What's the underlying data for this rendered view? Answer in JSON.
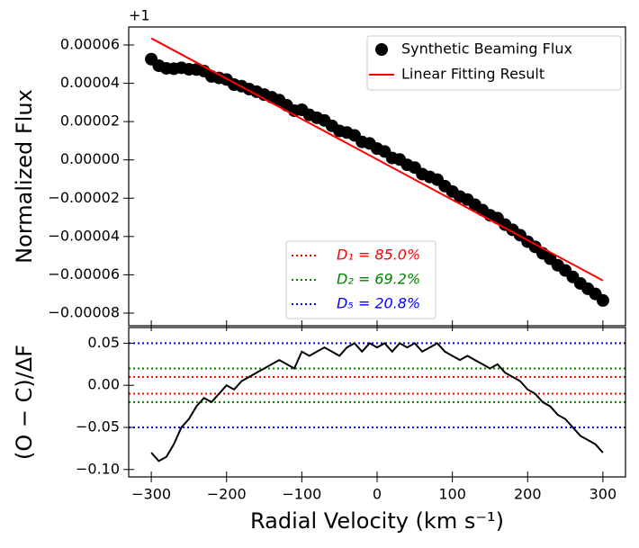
{
  "chart_data": [
    {
      "type": "scatter",
      "offset_text": "+1",
      "ylabel": "Normalized Flux",
      "xlim": [
        -330,
        330
      ],
      "xticks": [
        {
          "value": -300,
          "label": "−300"
        },
        {
          "value": -200,
          "label": "−200"
        },
        {
          "value": -100,
          "label": "−100"
        },
        0,
        100,
        200,
        300
      ],
      "ylim": [
        -8.66e-05,
        6.94e-05
      ],
      "yticks": [
        {
          "value": -8e-05,
          "label": "−0.00008"
        },
        {
          "value": -6e-05,
          "label": "−0.00006"
        },
        {
          "value": -4e-05,
          "label": "−0.00004"
        },
        {
          "value": -2e-05,
          "label": "−0.00002"
        },
        {
          "value": 0,
          "label": "0.00000"
        },
        2e-05,
        4e-05,
        6e-05
      ],
      "legend": "upper right",
      "series": [
        {
          "name": "Synthetic Beaming Flux",
          "kind": "scatter",
          "color": "#000000",
          "x": [
            -300,
            -290,
            -280,
            -270,
            -260,
            -250,
            -240,
            -230,
            -220,
            -210,
            -200,
            -190,
            -180,
            -170,
            -160,
            -150,
            -140,
            -130,
            -120,
            -110,
            -100,
            -90,
            -80,
            -70,
            -60,
            -50,
            -40,
            -30,
            -20,
            -10,
            0,
            10,
            20,
            30,
            40,
            50,
            60,
            70,
            80,
            90,
            100,
            110,
            120,
            130,
            140,
            150,
            160,
            170,
            180,
            190,
            200,
            210,
            220,
            230,
            240,
            250,
            260,
            270,
            280,
            290,
            300
          ],
          "values": [
            5.26e-05,
            4.92e-05,
            4.78e-05,
            4.76e-05,
            4.81e-05,
            4.73e-05,
            4.72e-05,
            4.64e-05,
            4.36e-05,
            4.28e-05,
            4.2e-05,
            3.93e-05,
            3.85e-05,
            3.7e-05,
            3.56e-05,
            3.41e-05,
            3.27e-05,
            3.12e-05,
            2.85e-05,
            2.57e-05,
            2.62e-05,
            2.35e-05,
            2.2e-05,
            2.06e-05,
            1.78e-05,
            1.51e-05,
            1.43e-05,
            1.28e-05,
            9.4e-06,
            8.6e-06,
            5.9e-06,
            4.4e-06,
            1e-06,
            2e-07,
            -2.6e-06,
            -4e-06,
            -7.4e-06,
            -8.9e-06,
            -1.03e-05,
            -1.37e-05,
            -1.65e-05,
            -1.92e-05,
            -2.07e-05,
            -2.34e-05,
            -2.62e-05,
            -2.89e-05,
            -3.04e-05,
            -3.38e-05,
            -3.65e-05,
            -3.93e-05,
            -4.27e-05,
            -4.54e-05,
            -4.88e-05,
            -5.16e-05,
            -5.5e-05,
            -5.77e-05,
            -6.11e-05,
            -6.45e-05,
            -6.73e-05,
            -7e-05,
            -7.34e-05
          ]
        },
        {
          "name": "Linear Fitting Result",
          "kind": "line",
          "color": "#ff0000",
          "x": [
            -300,
            300
          ],
          "values": [
            6.35e-05,
            -6.3e-05
          ]
        }
      ],
      "thresholds": [
        {
          "name": "D₁ = 85.0%",
          "color": "#ff0000"
        },
        {
          "name": "D₂ = 69.2%",
          "color": "#008000"
        },
        {
          "name": "D₅ = 20.8%",
          "color": "#0000ff"
        }
      ]
    },
    {
      "type": "line",
      "xlabel": "Radial Velocity (km s⁻¹)",
      "ylabel": "(O − C)/ΔF",
      "xlim": [
        -330,
        330
      ],
      "xticks": [
        {
          "value": -300,
          "label": "−300"
        },
        {
          "value": -200,
          "label": "−200"
        },
        {
          "value": -100,
          "label": "−100"
        },
        0,
        100,
        200,
        300
      ],
      "ylim": [
        -0.1088,
        0.0686
      ],
      "yticks": [
        {
          "value": -0.1,
          "label": "−0.10"
        },
        {
          "value": -0.05,
          "label": "−0.05"
        },
        {
          "value": 0,
          "label": "0.00"
        },
        0.05
      ],
      "hlines": [
        {
          "color": "#0000ff",
          "values": [
            0.05,
            -0.05
          ]
        },
        {
          "color": "#008000",
          "values": [
            0.02,
            -0.02
          ]
        },
        {
          "color": "#ff0000",
          "values": [
            0.01,
            -0.01
          ]
        }
      ],
      "series": [
        {
          "color": "#000000",
          "x": [
            -300,
            -290,
            -280,
            -270,
            -260,
            -250,
            -240,
            -230,
            -220,
            -210,
            -200,
            -190,
            -180,
            -170,
            -160,
            -150,
            -140,
            -130,
            -120,
            -110,
            -100,
            -90,
            -80,
            -70,
            -60,
            -50,
            -40,
            -30,
            -20,
            -10,
            0,
            10,
            20,
            30,
            40,
            50,
            60,
            70,
            80,
            90,
            100,
            110,
            120,
            130,
            140,
            150,
            160,
            170,
            180,
            190,
            200,
            210,
            220,
            230,
            240,
            250,
            260,
            270,
            280,
            290,
            300
          ],
          "values": [
            -0.08,
            -0.09,
            -0.085,
            -0.07,
            -0.05,
            -0.04,
            -0.025,
            -0.015,
            -0.02,
            -0.01,
            0,
            -0.005,
            0.005,
            0.01,
            0.015,
            0.02,
            0.025,
            0.03,
            0.025,
            0.02,
            0.04,
            0.035,
            0.04,
            0.045,
            0.04,
            0.035,
            0.045,
            0.05,
            0.04,
            0.05,
            0.045,
            0.05,
            0.04,
            0.05,
            0.045,
            0.05,
            0.04,
            0.045,
            0.05,
            0.04,
            0.035,
            0.03,
            0.035,
            0.03,
            0.025,
            0.02,
            0.025,
            0.015,
            0.01,
            0.005,
            -0.005,
            -0.01,
            -0.02,
            -0.025,
            -0.035,
            -0.04,
            -0.05,
            -0.06,
            -0.065,
            -0.07,
            -0.08
          ]
        }
      ]
    }
  ]
}
